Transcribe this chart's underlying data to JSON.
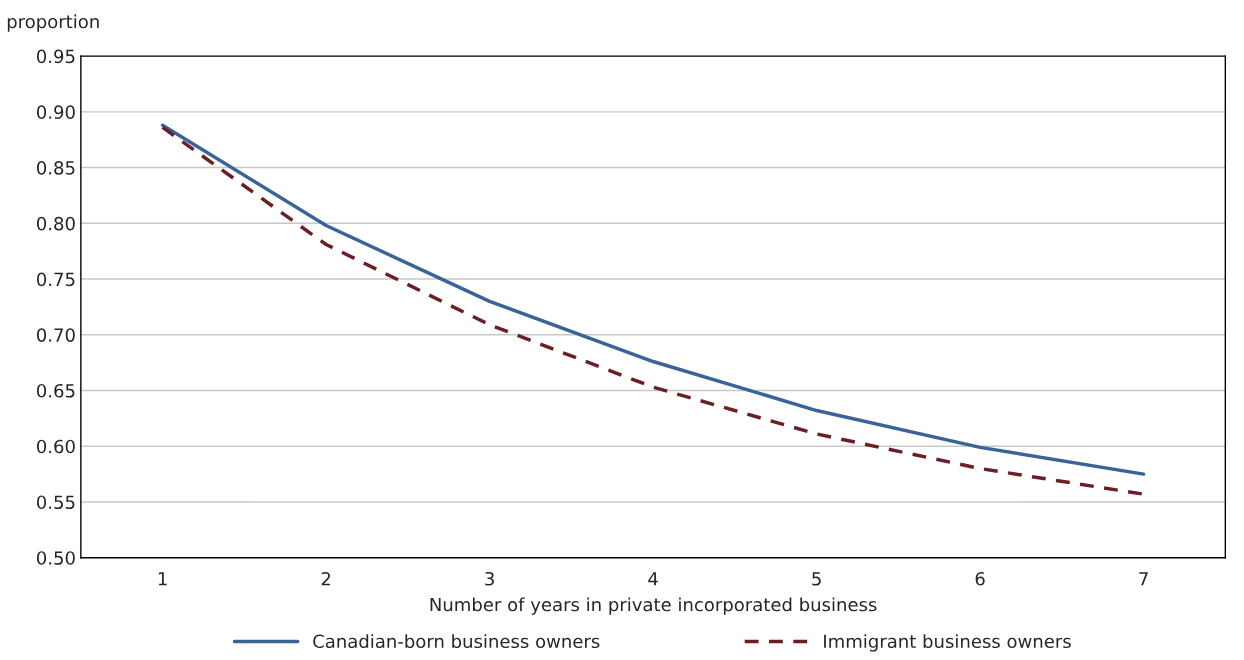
{
  "chart_data": {
    "type": "line",
    "xlabel": "Number of years in private incorporated business",
    "ylabel": "proportion",
    "categories": [
      "1",
      "2",
      "3",
      "4",
      "5",
      "6",
      "7"
    ],
    "series": [
      {
        "name": "Canadian-born business owners",
        "color": "#3a6499",
        "line_style": "solid",
        "values": [
          0.888,
          0.798,
          0.73,
          0.676,
          0.632,
          0.599,
          0.575
        ]
      },
      {
        "name": "Immigrant business owners",
        "color": "#6b1f24",
        "line_style": "dashed",
        "values": [
          0.886,
          0.781,
          0.709,
          0.653,
          0.611,
          0.58,
          0.557
        ]
      }
    ],
    "ylim": [
      0.5,
      0.95
    ],
    "yticks": [
      {
        "value": 0.5,
        "label": "0.50"
      },
      {
        "value": 0.55,
        "label": "0.55"
      },
      {
        "value": 0.6,
        "label": "0.60"
      },
      {
        "value": 0.65,
        "label": "0.65"
      },
      {
        "value": 0.7,
        "label": "0.70"
      },
      {
        "value": 0.75,
        "label": "0.75"
      },
      {
        "value": 0.8,
        "label": "0.80"
      },
      {
        "value": 0.85,
        "label": "0.85"
      },
      {
        "value": 0.9,
        "label": "0.90"
      },
      {
        "value": 0.95,
        "label": "0.95"
      }
    ],
    "grid": "y",
    "legend": "bottom",
    "marker": "none"
  }
}
